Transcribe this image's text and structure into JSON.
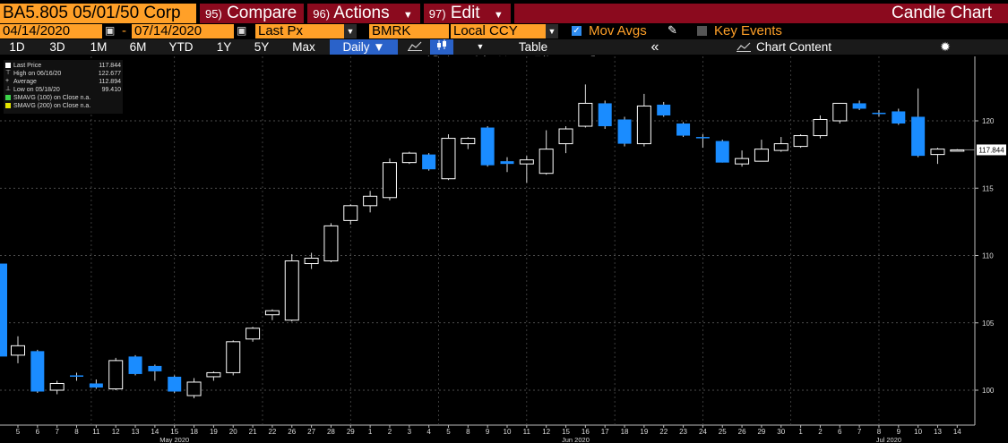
{
  "header": {
    "ticker": "BA5.805 05/01/50 Corp",
    "compare": {
      "num": "95)",
      "label": "Compare"
    },
    "actions": {
      "num": "96)",
      "label": "Actions"
    },
    "edit": {
      "num": "97)",
      "label": "Edit"
    },
    "title": "Candle Chart"
  },
  "controls": {
    "start_date": "04/14/2020",
    "dash": "-",
    "end_date": "07/14/2020",
    "field": "Last Px",
    "source": "BMRK",
    "currency": "Local CCY",
    "mov_avgs": "Mov Avgs",
    "key_events": "Key Events",
    "check_mark": "✓"
  },
  "range_bar": {
    "ranges": [
      "1D",
      "3D",
      "1M",
      "6M",
      "YTD",
      "1Y",
      "5Y",
      "Max"
    ],
    "period": "Daily ▼",
    "table": "Table",
    "collapse": "«",
    "chart_content": "Chart Content",
    "settings_icon": "gear-icon"
  },
  "tools": [
    "Track",
    "Annotate",
    "News",
    "Zoom"
  ],
  "legend": {
    "last_price": {
      "label": "Last Price",
      "value": "117.844"
    },
    "high": {
      "label": "High on 06/16/20",
      "value": "122.677"
    },
    "average": {
      "label": "Average",
      "value": "112.894"
    },
    "low": {
      "label": "Low on 05/18/20",
      "value": "99.410"
    },
    "smavg100": {
      "label": "SMAVG (100)  on Close",
      "value": "n.a."
    },
    "smavg200": {
      "label": "SMAVG (200)  on Close",
      "value": "n.a."
    }
  },
  "colors": {
    "up": "#000000",
    "up_outline": "#ffffff",
    "down": "#1a8cff",
    "background": "#000000",
    "accent_orange": "#ffa028",
    "header_red": "#8b0a1e",
    "smavg100": "#3cd24a",
    "smavg200": "#e6e600"
  },
  "chart_data": {
    "type": "candlestick",
    "last_price_label": "117.844",
    "ylim": [
      97.5,
      124.5
    ],
    "y_ticks": [
      100,
      105,
      110,
      115,
      120
    ],
    "x_labels": [
      "5",
      "6",
      "7",
      "8",
      "11",
      "12",
      "13",
      "14",
      "15",
      "18",
      "19",
      "20",
      "21",
      "22",
      "26",
      "27",
      "28",
      "29",
      "1",
      "2",
      "3",
      "4",
      "5",
      "8",
      "9",
      "10",
      "11",
      "12",
      "15",
      "16",
      "17",
      "18",
      "19",
      "22",
      "23",
      "24",
      "25",
      "26",
      "29",
      "30",
      "1",
      "2",
      "6",
      "7",
      "8",
      "9",
      "10",
      "13",
      "14"
    ],
    "month_labels": [
      {
        "label": "May 2020",
        "index": 8
      },
      {
        "label": "Jun 2020",
        "index": 28.5
      },
      {
        "label": "Jul 2020",
        "index": 44.5
      }
    ],
    "pre_candle": {
      "open": 109.4,
      "close": 102.5
    },
    "candles": [
      {
        "o": 102.6,
        "h": 104.0,
        "l": 102.0,
        "c": 103.3
      },
      {
        "o": 102.9,
        "h": 103.0,
        "l": 99.8,
        "c": 99.9
      },
      {
        "o": 100.0,
        "h": 100.7,
        "l": 99.7,
        "c": 100.5
      },
      {
        "o": 101.1,
        "h": 101.3,
        "l": 100.7,
        "c": 101.0
      },
      {
        "o": 100.5,
        "h": 100.8,
        "l": 100.1,
        "c": 100.2
      },
      {
        "o": 100.1,
        "h": 102.4,
        "l": 100.0,
        "c": 102.2
      },
      {
        "o": 102.5,
        "h": 102.6,
        "l": 101.1,
        "c": 101.2
      },
      {
        "o": 101.8,
        "h": 101.9,
        "l": 100.7,
        "c": 101.4
      },
      {
        "o": 101.0,
        "h": 101.1,
        "l": 99.8,
        "c": 99.9
      },
      {
        "o": 99.6,
        "h": 100.9,
        "l": 99.4,
        "c": 100.6
      },
      {
        "o": 101.0,
        "h": 101.4,
        "l": 100.7,
        "c": 101.3
      },
      {
        "o": 101.3,
        "h": 103.7,
        "l": 101.1,
        "c": 103.6
      },
      {
        "o": 103.8,
        "h": 104.7,
        "l": 103.6,
        "c": 104.6
      },
      {
        "o": 105.6,
        "h": 106.0,
        "l": 105.2,
        "c": 105.9
      },
      {
        "o": 105.2,
        "h": 110.1,
        "l": 105.1,
        "c": 109.6
      },
      {
        "o": 109.4,
        "h": 110.2,
        "l": 109.0,
        "c": 109.8
      },
      {
        "o": 109.6,
        "h": 112.4,
        "l": 109.5,
        "c": 112.2
      },
      {
        "o": 112.6,
        "h": 113.8,
        "l": 112.3,
        "c": 113.7
      },
      {
        "o": 113.7,
        "h": 114.8,
        "l": 113.2,
        "c": 114.4
      },
      {
        "o": 114.3,
        "h": 117.2,
        "l": 114.1,
        "c": 116.9
      },
      {
        "o": 116.9,
        "h": 117.7,
        "l": 116.8,
        "c": 117.6
      },
      {
        "o": 117.5,
        "h": 117.6,
        "l": 116.3,
        "c": 116.4
      },
      {
        "o": 115.7,
        "h": 119.0,
        "l": 115.6,
        "c": 118.7
      },
      {
        "o": 118.3,
        "h": 118.8,
        "l": 117.9,
        "c": 118.7
      },
      {
        "o": 119.5,
        "h": 119.6,
        "l": 116.6,
        "c": 116.7
      },
      {
        "o": 117.0,
        "h": 117.3,
        "l": 116.2,
        "c": 116.8
      },
      {
        "o": 116.8,
        "h": 117.4,
        "l": 115.4,
        "c": 117.1
      },
      {
        "o": 116.1,
        "h": 119.3,
        "l": 116.0,
        "c": 117.9
      },
      {
        "o": 118.3,
        "h": 119.6,
        "l": 117.6,
        "c": 119.4
      },
      {
        "o": 119.6,
        "h": 122.7,
        "l": 119.5,
        "c": 121.3
      },
      {
        "o": 121.3,
        "h": 121.5,
        "l": 119.4,
        "c": 119.6
      },
      {
        "o": 120.1,
        "h": 120.3,
        "l": 118.1,
        "c": 118.3
      },
      {
        "o": 118.3,
        "h": 122.0,
        "l": 118.1,
        "c": 121.1
      },
      {
        "o": 121.2,
        "h": 121.4,
        "l": 120.3,
        "c": 120.4
      },
      {
        "o": 119.8,
        "h": 119.9,
        "l": 118.8,
        "c": 118.9
      },
      {
        "o": 118.8,
        "h": 119.0,
        "l": 118.0,
        "c": 118.7
      },
      {
        "o": 118.5,
        "h": 118.6,
        "l": 116.9,
        "c": 116.9
      },
      {
        "o": 116.8,
        "h": 117.8,
        "l": 116.6,
        "c": 117.2
      },
      {
        "o": 117.0,
        "h": 118.6,
        "l": 117.0,
        "c": 117.9
      },
      {
        "o": 117.8,
        "h": 118.8,
        "l": 117.7,
        "c": 118.3
      },
      {
        "o": 118.1,
        "h": 119.0,
        "l": 118.0,
        "c": 118.9
      },
      {
        "o": 118.9,
        "h": 120.4,
        "l": 118.7,
        "c": 120.1
      },
      {
        "o": 120.0,
        "h": 121.3,
        "l": 119.8,
        "c": 121.3
      },
      {
        "o": 121.3,
        "h": 121.5,
        "l": 120.8,
        "c": 120.9
      },
      {
        "o": 120.6,
        "h": 120.8,
        "l": 120.3,
        "c": 120.5
      },
      {
        "o": 120.7,
        "h": 120.9,
        "l": 119.7,
        "c": 119.8
      },
      {
        "o": 120.3,
        "h": 122.4,
        "l": 117.3,
        "c": 117.4
      },
      {
        "o": 117.5,
        "h": 118.0,
        "l": 116.8,
        "c": 117.9
      },
      {
        "o": 117.844,
        "h": 117.9,
        "l": 117.8,
        "c": 117.844
      }
    ]
  }
}
